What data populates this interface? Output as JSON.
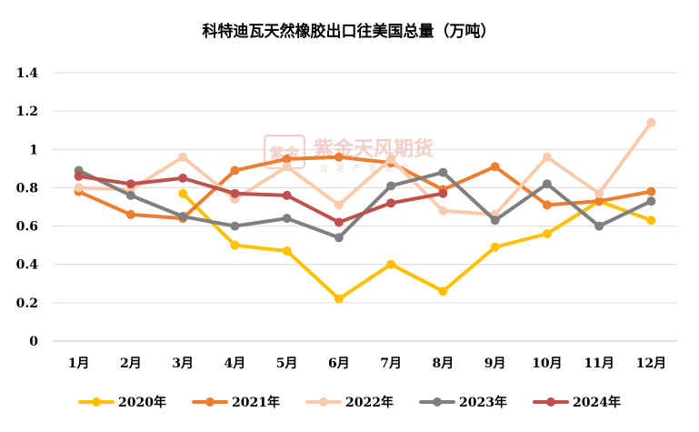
{
  "chart_data": {
    "type": "line",
    "title": "科特迪瓦天然橡胶出口往美国总量（万吨）",
    "xlabel": "",
    "ylabel": "",
    "categories": [
      "1月",
      "2月",
      "3月",
      "4月",
      "5月",
      "6月",
      "7月",
      "8月",
      "9月",
      "10月",
      "11月",
      "12月"
    ],
    "ylim": [
      0,
      1.4
    ],
    "yticks": [
      0,
      0.2,
      0.4,
      0.6,
      0.8,
      1,
      1.2,
      1.4
    ],
    "ytick_labels": [
      "0",
      "0.2",
      "0.4",
      "0.6",
      "0.8",
      "1",
      "1.2",
      "1.4"
    ],
    "grid": true,
    "legend_position": "bottom",
    "series": [
      {
        "name": "2020年",
        "color": "#FFC000",
        "values": [
          null,
          null,
          0.77,
          0.5,
          0.47,
          0.22,
          0.4,
          0.26,
          0.49,
          0.56,
          0.73,
          0.63
        ]
      },
      {
        "name": "2021年",
        "color": "#ED7D31",
        "values": [
          0.78,
          0.66,
          0.64,
          0.89,
          0.95,
          0.96,
          0.93,
          0.79,
          0.91,
          0.71,
          0.73,
          0.78
        ]
      },
      {
        "name": "2022年",
        "color": "#F8CBAD",
        "values": [
          0.8,
          0.79,
          0.96,
          0.74,
          0.91,
          0.71,
          0.95,
          0.68,
          0.66,
          0.96,
          0.77,
          1.14
        ]
      },
      {
        "name": "2023年",
        "color": "#7F7F7F",
        "values": [
          0.89,
          0.76,
          0.65,
          0.6,
          0.64,
          0.54,
          0.81,
          0.88,
          0.63,
          0.82,
          0.6,
          0.73
        ]
      },
      {
        "name": "2024年",
        "color": "#C0504D",
        "values": [
          0.86,
          0.82,
          0.85,
          0.77,
          0.76,
          0.62,
          0.72,
          0.77,
          null,
          null,
          null,
          null
        ]
      }
    ]
  },
  "watermark": {
    "logo_text": "紫金",
    "name": "紫金天风期货",
    "subtitle": "立 足 产 业  研 究"
  }
}
